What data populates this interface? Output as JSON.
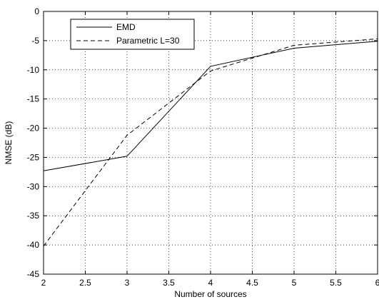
{
  "chart_data": {
    "type": "line",
    "xlabel": "Number of sources",
    "ylabel": "NMSE (dB)",
    "xlim": [
      2,
      6
    ],
    "ylim": [
      -45,
      0
    ],
    "xticks": [
      "2",
      "2.5",
      "3",
      "3.5",
      "4",
      "4.5",
      "5",
      "5.5",
      "6"
    ],
    "yticks": [
      "0",
      "-5",
      "-10",
      "-15",
      "-20",
      "-25",
      "-30",
      "-35",
      "-40",
      "-45"
    ],
    "grid": true,
    "legend_position": "top-left",
    "series": [
      {
        "name": "EMD",
        "style": "solid",
        "color": "#000000",
        "x": [
          2,
          3,
          4,
          5,
          6
        ],
        "y": [
          -27.3,
          -24.8,
          -9.4,
          -6.3,
          -5.1
        ]
      },
      {
        "name": "Parametric L=30",
        "style": "dashed",
        "color": "#000000",
        "x": [
          2,
          3,
          4,
          5,
          6
        ],
        "y": [
          -40.2,
          -21.2,
          -10.2,
          -5.8,
          -4.7
        ]
      }
    ]
  }
}
